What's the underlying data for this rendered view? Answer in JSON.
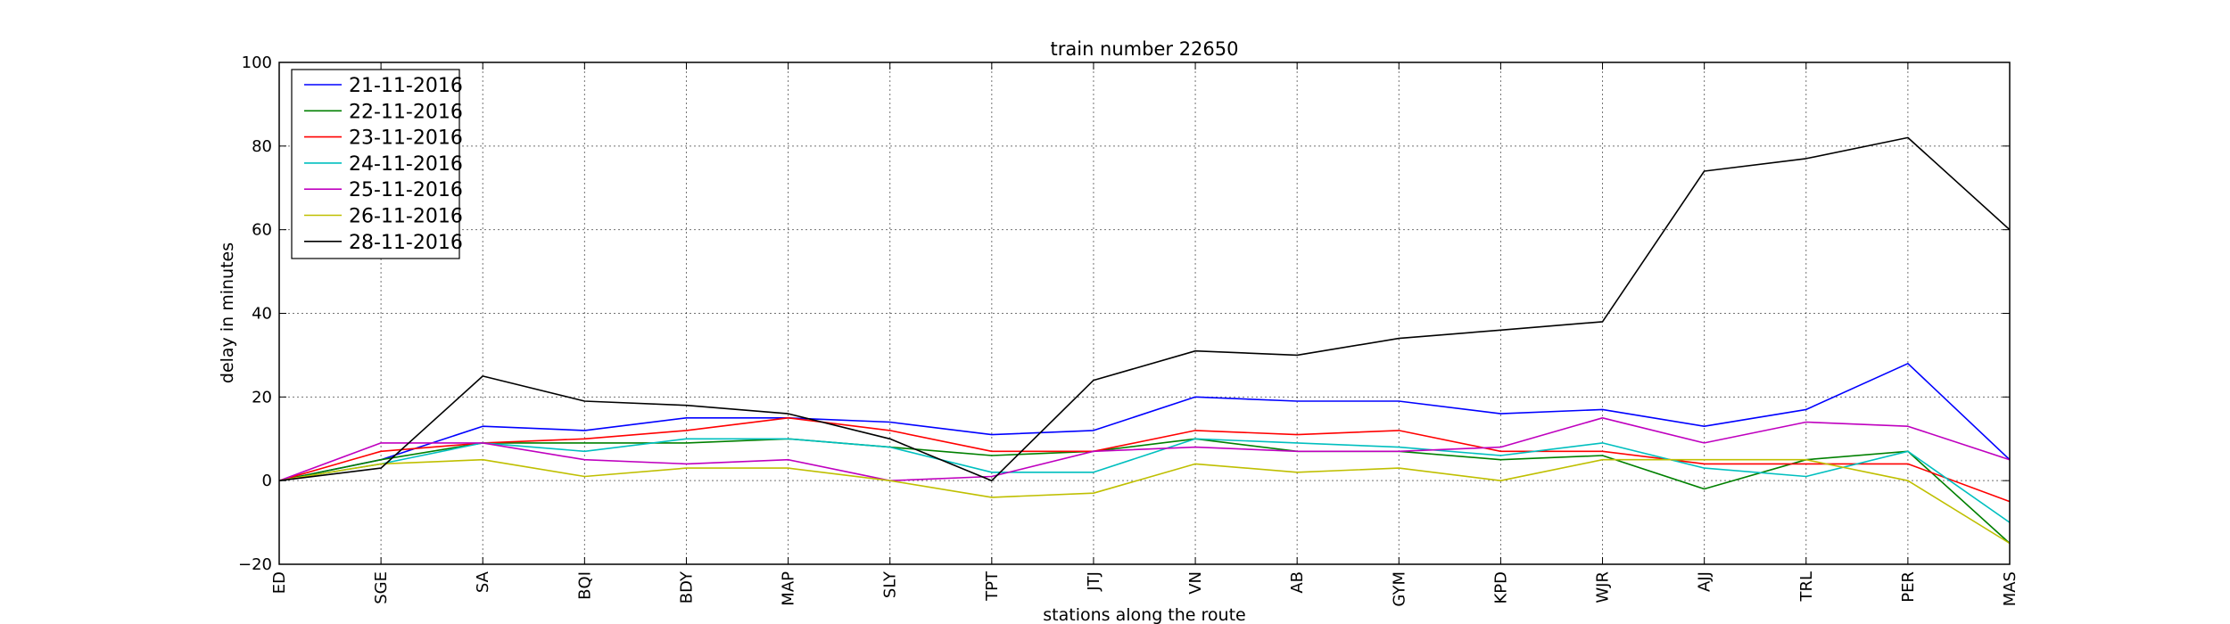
{
  "chart_data": {
    "type": "line",
    "title": "train number 22650",
    "xlabel": "stations along the route",
    "ylabel": "delay in minutes",
    "ylim": [
      -20,
      100
    ],
    "yticks": [
      -20,
      0,
      20,
      40,
      60,
      80,
      100
    ],
    "grid": true,
    "legend_position": "top-left",
    "categories": [
      "ED",
      "SGE",
      "SA",
      "BQI",
      "BDY",
      "MAP",
      "SLY",
      "TPT",
      "JTJ",
      "VN",
      "AB",
      "GYM",
      "KPD",
      "WJR",
      "AJJ",
      "TRL",
      "PER",
      "MAS"
    ],
    "series": [
      {
        "name": "21-11-2016",
        "color": "#0000ff",
        "values": [
          0,
          5,
          13,
          12,
          15,
          15,
          14,
          11,
          12,
          20,
          19,
          19,
          16,
          17,
          13,
          17,
          28,
          5
        ]
      },
      {
        "name": "22-11-2016",
        "color": "#008000",
        "values": [
          0,
          5,
          9,
          9,
          9,
          10,
          8,
          6,
          7,
          10,
          7,
          7,
          5,
          6,
          -2,
          5,
          7,
          -15
        ]
      },
      {
        "name": "23-11-2016",
        "color": "#ff0000",
        "values": [
          0,
          7,
          9,
          10,
          12,
          15,
          12,
          7,
          7,
          12,
          11,
          12,
          7,
          7,
          4,
          4,
          4,
          -5
        ]
      },
      {
        "name": "24-11-2016",
        "color": "#00bfbf",
        "values": [
          0,
          4,
          9,
          7,
          10,
          10,
          8,
          2,
          2,
          10,
          9,
          8,
          6,
          9,
          3,
          1,
          7,
          -10
        ]
      },
      {
        "name": "25-11-2016",
        "color": "#bf00bf",
        "values": [
          0,
          9,
          9,
          5,
          4,
          5,
          0,
          1,
          7,
          8,
          7,
          7,
          8,
          15,
          9,
          14,
          13,
          5
        ]
      },
      {
        "name": "26-11-2016",
        "color": "#bfbf00",
        "values": [
          0,
          4,
          5,
          1,
          3,
          3,
          0,
          -4,
          -3,
          4,
          2,
          3,
          0,
          5,
          5,
          5,
          0,
          -15
        ]
      },
      {
        "name": "28-11-2016",
        "color": "#000000",
        "values": [
          0,
          3,
          25,
          19,
          18,
          16,
          10,
          0,
          24,
          31,
          30,
          34,
          36,
          38,
          74,
          77,
          82,
          60
        ]
      }
    ]
  }
}
